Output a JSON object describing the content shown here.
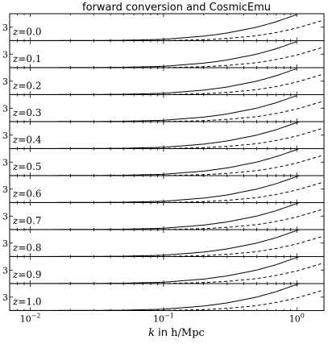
{
  "chart_data": {
    "type": "line",
    "title": "forward conversion and CosmicEmu",
    "xlabel": {
      "k_symbol": "k",
      "in_word": " in ",
      "unit": "h/Mpc"
    },
    "xscale": "log",
    "xlim": [
      0.007,
      1.6
    ],
    "x_ticks": [
      {
        "value": 0.01,
        "label_base": "10",
        "label_exp": "−2"
      },
      {
        "value": 0.1,
        "label_base": "10",
        "label_exp": "−1"
      },
      {
        "value": 1,
        "label_base": "10",
        "label_exp": "0"
      }
    ],
    "ylim": [
      0,
      6
    ],
    "y_tick_value": 3,
    "y_tick_label": "3",
    "panels": [
      {
        "z_label": "z",
        "z_value": "=0.0",
        "k_solid_max": 1.0,
        "k_dash_max": 1.6
      },
      {
        "z_label": "z",
        "z_value": "=0.1",
        "k_solid_max": 1.0,
        "k_dash_max": 1.6
      },
      {
        "z_label": "z",
        "z_value": "=0.2",
        "k_solid_max": 1.0,
        "k_dash_max": 1.6
      },
      {
        "z_label": "z",
        "z_value": "=0.3",
        "k_solid_max": 1.0,
        "k_dash_max": 1.6
      },
      {
        "z_label": "z",
        "z_value": "=0.4",
        "k_solid_max": 1.1,
        "k_dash_max": 1.6
      },
      {
        "z_label": "z",
        "z_value": "=0.5",
        "k_solid_max": 1.2,
        "k_dash_max": 1.6
      },
      {
        "z_label": "z",
        "z_value": "=0.6",
        "k_solid_max": 1.3,
        "k_dash_max": 1.6
      },
      {
        "z_label": "z",
        "z_value": "=0.7",
        "k_solid_max": 1.45,
        "k_dash_max": 1.6
      },
      {
        "z_label": "z",
        "z_value": "=0.8",
        "k_solid_max": 1.45,
        "k_dash_max": 1.6
      },
      {
        "z_label": "z",
        "z_value": "=0.9",
        "k_solid_max": 1.45,
        "k_dash_max": 1.6
      },
      {
        "z_label": "z",
        "z_value": "=1.0",
        "k_solid_max": 1.45,
        "k_dash_max": 1.6
      }
    ],
    "series": [
      {
        "style": "solid",
        "x": [
          0.007,
          0.01,
          0.02,
          0.05,
          0.1,
          0.2,
          0.3,
          0.5,
          0.7,
          1.0,
          1.45
        ],
        "values": [
          0.02,
          0.02,
          0.03,
          0.08,
          0.3,
          1.0,
          1.7,
          3.0,
          4.2,
          5.8,
          7.5
        ]
      },
      {
        "style": "dashed",
        "x": [
          0.007,
          0.01,
          0.05,
          0.1,
          0.2,
          0.3,
          0.5,
          0.7,
          1.0,
          1.3,
          1.6
        ],
        "values": [
          0.0,
          0.0,
          0.01,
          0.03,
          0.2,
          0.5,
          1.1,
          1.8,
          2.8,
          3.8,
          4.6
        ]
      }
    ],
    "grid": false,
    "legend": "none"
  }
}
